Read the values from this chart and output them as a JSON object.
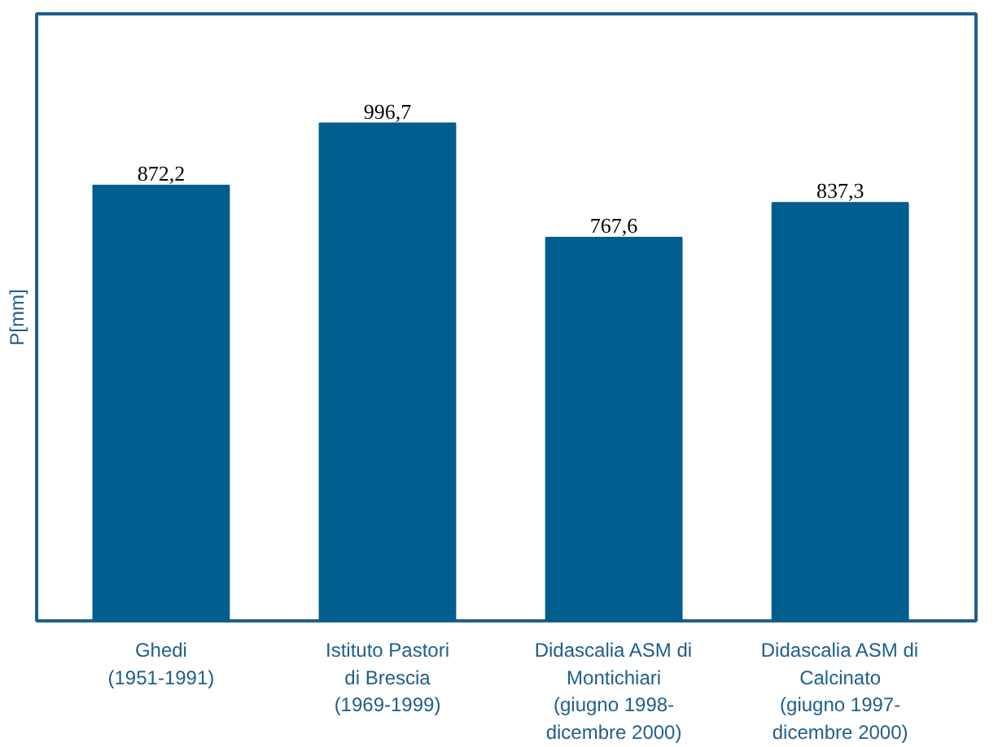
{
  "chart_data": {
    "type": "bar",
    "ylabel": "P[mm]",
    "categories": [
      "Ghedi\n(1951-1991)",
      "Istituto Pastori\ndi Brescia\n(1969-1999)",
      "Didascalia ASM di\nMontichiari\n(giugno 1998-\ndicembre 2000)",
      "Didascalia ASM di\nCalcinato\n(giugno 1997-\ndicembre 2000)"
    ],
    "values": [
      872.2,
      996.7,
      767.6,
      837.3
    ],
    "value_labels": [
      "872,2",
      "996,7",
      "767,6",
      "837,3"
    ],
    "color": "#005e8e",
    "tick_labels": "x",
    "grid": false
  }
}
